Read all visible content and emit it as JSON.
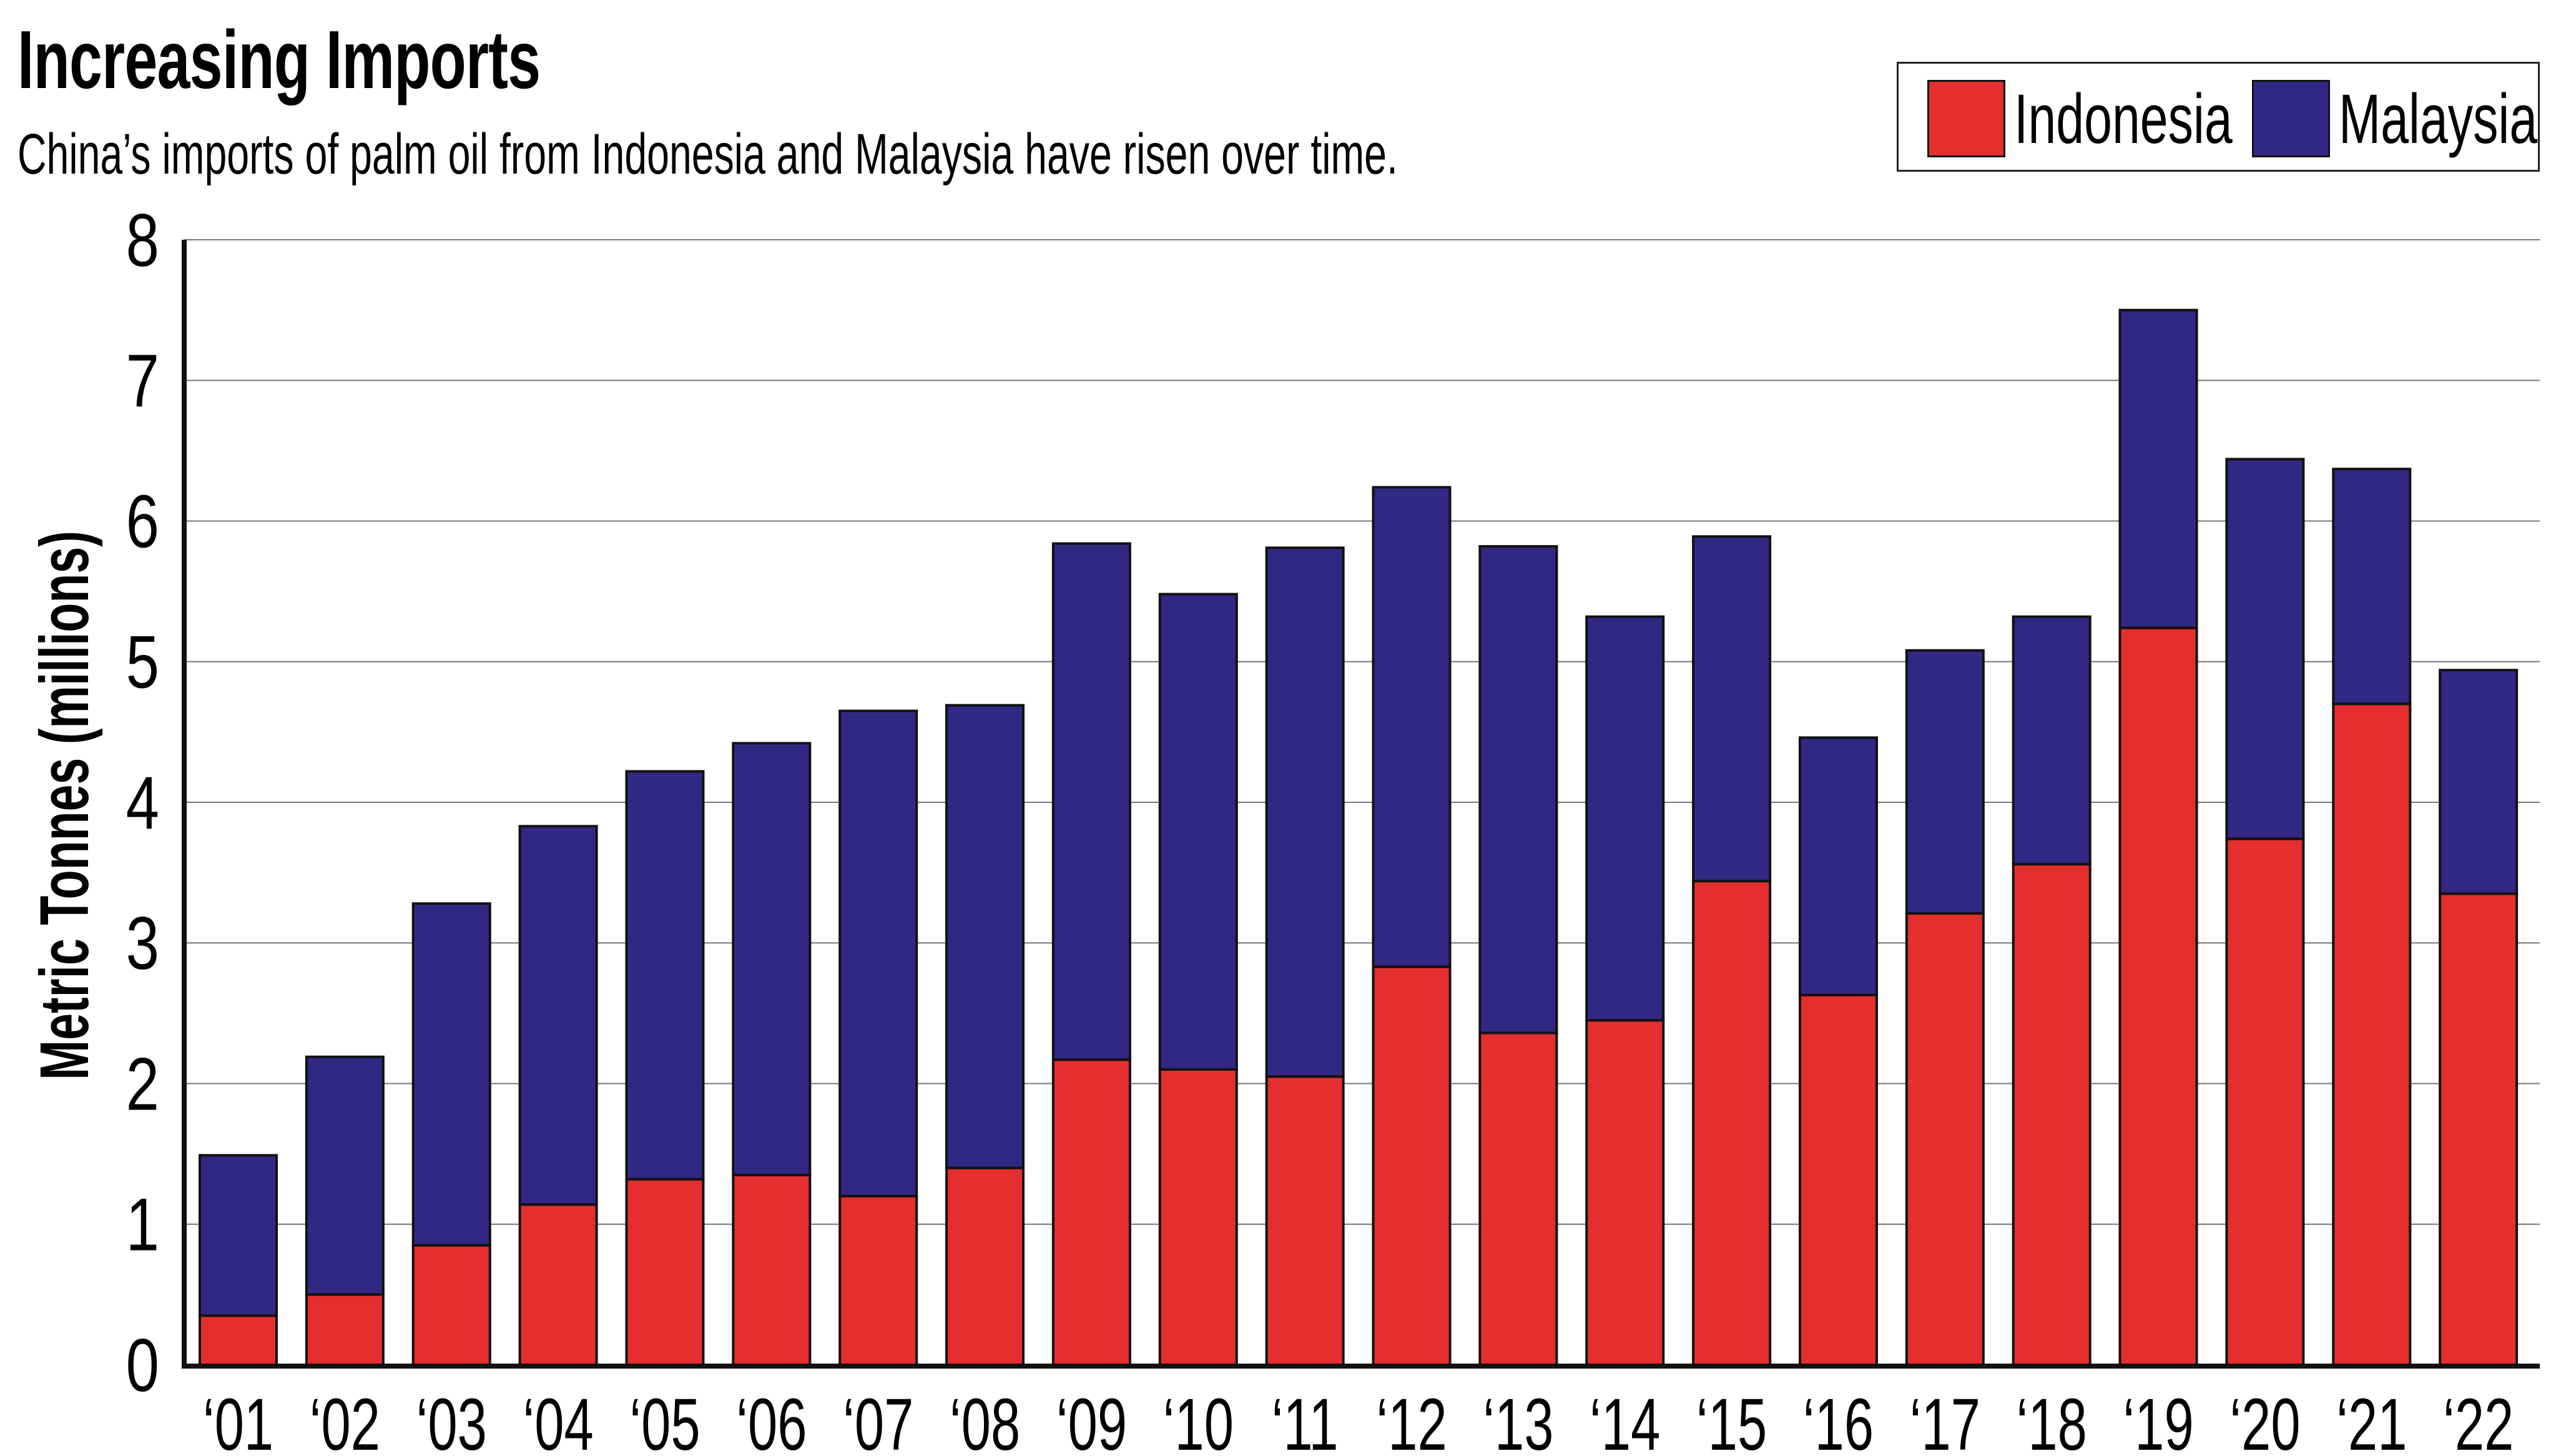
{
  "chart_data": {
    "type": "bar",
    "stacked": true,
    "title": "Increasing Imports",
    "subtitle": "China’s imports of palm oil from Indonesia and Malaysia have risen over time.",
    "xlabel": "",
    "ylabel": "Metric Tonnes (millions)",
    "ylim": [
      0,
      8
    ],
    "yticks": [
      "0",
      "1",
      "2",
      "3",
      "4",
      "5",
      "6",
      "7",
      "8"
    ],
    "grid": true,
    "legend_position": "top-right",
    "categories": [
      "‘01",
      "‘02",
      "‘03",
      "‘04",
      "‘05",
      "‘06",
      "‘07",
      "‘08",
      "‘09",
      "‘10",
      "‘11",
      "‘12",
      "‘13",
      "‘14",
      "‘15",
      "‘16",
      "‘17",
      "‘18",
      "‘19",
      "‘20",
      "‘21",
      "‘22"
    ],
    "series": [
      {
        "name": "Indonesia",
        "color": "#e52e2e",
        "values": [
          0.35,
          0.5,
          0.85,
          1.14,
          1.32,
          1.35,
          1.2,
          1.4,
          2.17,
          2.1,
          2.05,
          2.83,
          2.36,
          2.45,
          3.44,
          2.63,
          3.21,
          3.56,
          5.24,
          3.74,
          4.7,
          3.35
        ]
      },
      {
        "name": "Malaysia",
        "color": "#322884",
        "values": [
          1.14,
          1.69,
          2.43,
          2.69,
          2.9,
          3.07,
          3.45,
          3.29,
          3.67,
          3.38,
          3.76,
          3.41,
          3.46,
          2.87,
          2.45,
          1.83,
          1.87,
          1.76,
          2.26,
          2.7,
          1.67,
          1.59
        ]
      }
    ],
    "totals": [
      1.49,
      2.19,
      3.28,
      3.83,
      4.22,
      4.42,
      4.65,
      4.69,
      5.84,
      5.48,
      5.81,
      6.24,
      5.82,
      5.32,
      5.89,
      4.46,
      5.08,
      5.32,
      7.5,
      6.44,
      6.37,
      4.94
    ]
  },
  "legend": {
    "items": [
      {
        "label": "Indonesia",
        "color": "#e52e2e"
      },
      {
        "label": "Malaysia",
        "color": "#322884"
      }
    ]
  }
}
